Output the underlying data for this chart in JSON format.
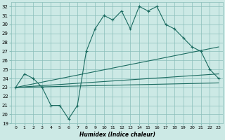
{
  "xlabel": "Humidex (Indice chaleur)",
  "bg_color": "#cce9e5",
  "grid_color": "#8abfba",
  "line_color": "#1a6b60",
  "xlim": [
    -0.5,
    23.5
  ],
  "ylim": [
    19,
    32.5
  ],
  "xticks": [
    0,
    1,
    2,
    3,
    4,
    5,
    6,
    7,
    8,
    9,
    10,
    11,
    12,
    13,
    14,
    15,
    16,
    17,
    18,
    19,
    20,
    21,
    22,
    23
  ],
  "yticks": [
    19,
    20,
    21,
    22,
    23,
    24,
    25,
    26,
    27,
    28,
    29,
    30,
    31,
    32
  ],
  "curve1_x": [
    0,
    1,
    2,
    3,
    4,
    5,
    6,
    7,
    8,
    9,
    10,
    11,
    12,
    13,
    14,
    15,
    16,
    17,
    18,
    19,
    20,
    21,
    22,
    23
  ],
  "curve1_y": [
    23,
    24.5,
    24,
    23,
    21,
    21,
    19.5,
    21,
    27,
    29.5,
    31,
    30.5,
    31.5,
    29.5,
    32,
    31.5,
    32,
    30,
    29.5,
    28.5,
    27.5,
    27,
    25,
    24
  ],
  "curve2_x": [
    0,
    23
  ],
  "curve2_y": [
    23,
    27.5
  ],
  "curve3_x": [
    0,
    23
  ],
  "curve3_y": [
    23,
    24.5
  ],
  "curve4_x": [
    0,
    23
  ],
  "curve4_y": [
    23,
    23.5
  ],
  "c1_markers_x": [
    0,
    1,
    2,
    3,
    4,
    5,
    6,
    7,
    8,
    9,
    10,
    11,
    12,
    13,
    14,
    15,
    16,
    17,
    18,
    19,
    20,
    21,
    22,
    23
  ],
  "c1_markers_y": [
    23,
    24.5,
    24,
    23,
    21,
    21,
    19.5,
    21,
    27,
    29.5,
    31,
    30.5,
    31.5,
    29.5,
    32,
    31.5,
    32,
    30,
    29.5,
    28.5,
    27.5,
    27,
    25,
    24
  ]
}
